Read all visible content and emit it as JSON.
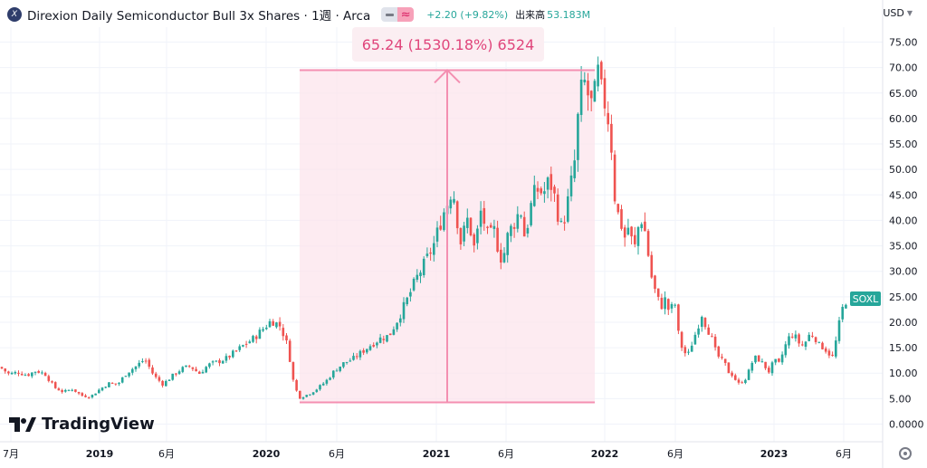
{
  "header": {
    "symbol_icon": "soxl-logo-icon",
    "symbol_glyph": "X",
    "title": "Direxion Daily Semiconductor Bull 3x Shares · 1週 · Arca",
    "change": "+2.20 (+9.82%)",
    "volume_label": "出来高",
    "volume_value": "53.183M",
    "currency": "USD"
  },
  "measure": {
    "label": "65.24 (1530.18%) 6524",
    "from_price": 4.26,
    "to_price": 69.5,
    "color": "#f48fb1"
  },
  "last_price_tag": "SOXL",
  "brand": "TradingView",
  "colors": {
    "up": "#26a69a",
    "down": "#ef5350",
    "measure": "#f48fb1",
    "last": "#26a69a"
  },
  "chart_data": {
    "type": "candlestick",
    "y_ticks": [
      "75.00",
      "70.00",
      "65.00",
      "60.00",
      "55.00",
      "50.00",
      "45.00",
      "40.00",
      "35.00",
      "30.00",
      "25.00",
      "20.00",
      "15.00",
      "10.00",
      "5.00",
      "0.0000"
    ],
    "y_range": [
      0,
      77
    ],
    "x_ticks": [
      {
        "label": "7月",
        "year": false
      },
      {
        "label": "2019",
        "year": true
      },
      {
        "label": "6月",
        "year": false
      },
      {
        "label": "2020",
        "year": true
      },
      {
        "label": "6月",
        "year": false
      },
      {
        "label": "2021",
        "year": true
      },
      {
        "label": "6月",
        "year": false
      },
      {
        "label": "2022",
        "year": true
      },
      {
        "label": "6月",
        "year": false
      },
      {
        "label": "2023",
        "year": true
      },
      {
        "label": "6月",
        "year": false
      }
    ],
    "close_path": [
      [
        0,
        11.2
      ],
      [
        10,
        9.8
      ],
      [
        20,
        10.2
      ],
      [
        30,
        9.6
      ],
      [
        40,
        10.5
      ],
      [
        50,
        9.8
      ],
      [
        60,
        7.2
      ],
      [
        70,
        6.3
      ],
      [
        80,
        6.9
      ],
      [
        90,
        5.6
      ],
      [
        100,
        5.4
      ],
      [
        110,
        6.8
      ],
      [
        120,
        8.0
      ],
      [
        130,
        7.8
      ],
      [
        140,
        10.1
      ],
      [
        150,
        11.3
      ],
      [
        160,
        12.8
      ],
      [
        170,
        9.5
      ],
      [
        180,
        7.8
      ],
      [
        190,
        9.4
      ],
      [
        200,
        10.8
      ],
      [
        210,
        11.4
      ],
      [
        220,
        9.9
      ],
      [
        230,
        11.6
      ],
      [
        240,
        12.2
      ],
      [
        250,
        12.9
      ],
      [
        260,
        14.2
      ],
      [
        270,
        15.6
      ],
      [
        280,
        16.8
      ],
      [
        290,
        18.6
      ],
      [
        300,
        20.4
      ],
      [
        310,
        19.2
      ],
      [
        318,
        15.2
      ],
      [
        324,
        8.5
      ],
      [
        330,
        5.2
      ],
      [
        340,
        5.8
      ],
      [
        350,
        6.9
      ],
      [
        360,
        8.4
      ],
      [
        370,
        10.6
      ],
      [
        380,
        12.0
      ],
      [
        390,
        12.8
      ],
      [
        400,
        14.2
      ],
      [
        410,
        15.6
      ],
      [
        420,
        16.8
      ],
      [
        430,
        17.4
      ],
      [
        440,
        20.8
      ],
      [
        450,
        24.5
      ],
      [
        460,
        28.6
      ],
      [
        470,
        31.8
      ],
      [
        480,
        35.6
      ],
      [
        488,
        40.6
      ],
      [
        495,
        43.8
      ],
      [
        500,
        46.8
      ],
      [
        505,
        40.2
      ],
      [
        510,
        34.6
      ],
      [
        515,
        40.8
      ],
      [
        520,
        37.9
      ],
      [
        525,
        33.5
      ],
      [
        530,
        42.2
      ],
      [
        535,
        39.6
      ],
      [
        540,
        35.8
      ],
      [
        545,
        38.6
      ],
      [
        550,
        34.8
      ],
      [
        555,
        31.8
      ],
      [
        560,
        36.5
      ],
      [
        565,
        38.6
      ],
      [
        570,
        40.3
      ],
      [
        575,
        42.3
      ],
      [
        580,
        36.2
      ],
      [
        585,
        41.8
      ],
      [
        590,
        45.0
      ],
      [
        595,
        46.2
      ],
      [
        600,
        45.1
      ],
      [
        605,
        47.2
      ],
      [
        610,
        46.8
      ],
      [
        615,
        42.4
      ],
      [
        620,
        38.6
      ],
      [
        625,
        41.5
      ],
      [
        630,
        46.2
      ],
      [
        635,
        51.8
      ],
      [
        640,
        63.6
      ],
      [
        645,
        67.4
      ],
      [
        650,
        64.3
      ],
      [
        655,
        61.8
      ],
      [
        660,
        69.4
      ],
      [
        665,
        64.4
      ],
      [
        670,
        62.3
      ],
      [
        675,
        55.6
      ],
      [
        680,
        42.4
      ],
      [
        685,
        40.2
      ],
      [
        690,
        36.6
      ],
      [
        695,
        39.2
      ],
      [
        700,
        33.4
      ],
      [
        705,
        38.6
      ],
      [
        710,
        40.8
      ],
      [
        715,
        34.6
      ],
      [
        720,
        28.6
      ],
      [
        725,
        25.2
      ],
      [
        730,
        23.1
      ],
      [
        735,
        24.5
      ],
      [
        740,
        21.6
      ],
      [
        745,
        24.6
      ],
      [
        750,
        16.8
      ],
      [
        755,
        14.2
      ],
      [
        760,
        13.5
      ],
      [
        765,
        16.2
      ],
      [
        770,
        18.6
      ],
      [
        775,
        21.8
      ],
      [
        780,
        19.3
      ],
      [
        785,
        17.5
      ],
      [
        790,
        14.5
      ],
      [
        795,
        12.8
      ],
      [
        800,
        12.1
      ],
      [
        805,
        10.2
      ],
      [
        810,
        9.6
      ],
      [
        815,
        7.8
      ],
      [
        820,
        8.4
      ],
      [
        825,
        9.2
      ],
      [
        830,
        11.9
      ],
      [
        835,
        13.1
      ],
      [
        840,
        12.4
      ],
      [
        845,
        11.3
      ],
      [
        850,
        10.2
      ],
      [
        855,
        12.6
      ],
      [
        860,
        11.6
      ],
      [
        865,
        14.1
      ],
      [
        870,
        16.6
      ],
      [
        875,
        17.6
      ],
      [
        880,
        16.8
      ],
      [
        885,
        15.2
      ],
      [
        890,
        16.2
      ],
      [
        895,
        17.8
      ],
      [
        900,
        17.2
      ],
      [
        905,
        15.4
      ],
      [
        910,
        15.1
      ],
      [
        915,
        14.0
      ],
      [
        920,
        13.1
      ],
      [
        925,
        17.8
      ],
      [
        930,
        22.3
      ],
      [
        935,
        24.6
      ],
      [
        940,
        24.1
      ]
    ]
  }
}
